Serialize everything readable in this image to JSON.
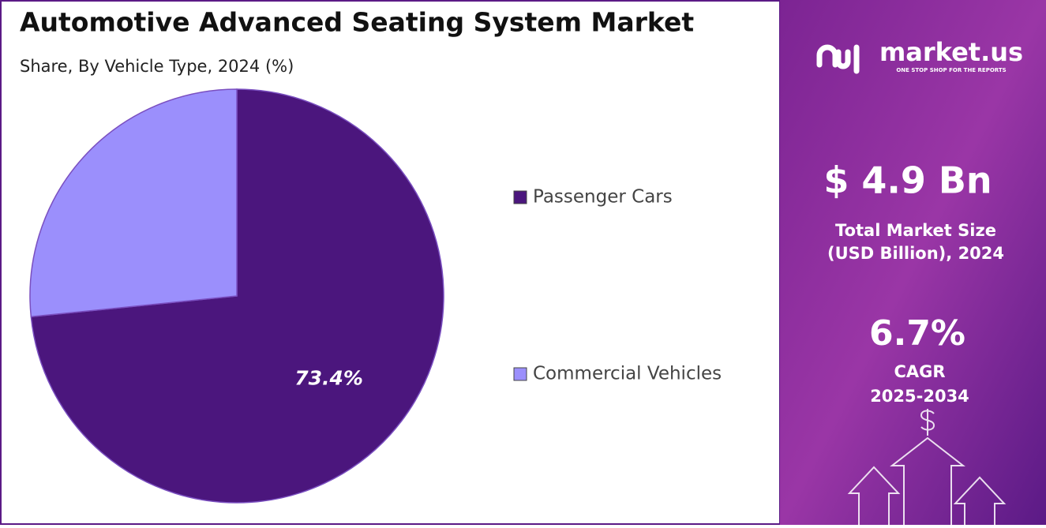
{
  "chart_data": {
    "type": "pie",
    "title": "Automotive Advanced Seating System Market",
    "subtitle": "Share, By Vehicle Type, 2024 (%)",
    "categories": [
      "Passenger Cars",
      "Commercial Vehicles"
    ],
    "values": [
      73.4,
      26.6
    ],
    "value_labels": [
      "73.4%",
      null
    ],
    "colors": [
      "#4b167d",
      "#9b8ffc"
    ],
    "legend": "right"
  },
  "side_panel": {
    "brand": "market.us",
    "tagline": "ONE STOP SHOP FOR THE REPORTS",
    "market_size": "$ 4.9 Bn",
    "market_size_label": [
      "Total Market Size",
      "(USD Billion), 2024"
    ],
    "cagr": "6.7%",
    "cagr_label": "CAGR",
    "cagr_period": "2025-2034"
  }
}
